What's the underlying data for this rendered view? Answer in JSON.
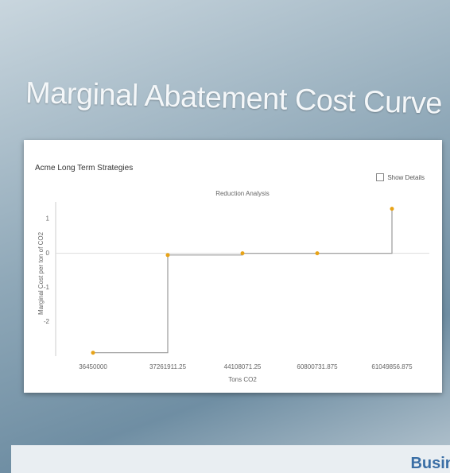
{
  "slide": {
    "title": "Marginal Abatement Cost Curve (MACC)",
    "footer": "Busin"
  },
  "panel": {
    "title": "Acme Long Term Strategies",
    "checkbox": "Show Details"
  },
  "chart_data": {
    "type": "step",
    "title": "Reduction Analysis",
    "x_label": "Tons CO2",
    "y_label": "Marginal Cost per ton of CO2",
    "categories": [
      "36450000",
      "37261911.25",
      "44108071.25",
      "60800731.875",
      "61049856.875"
    ],
    "values": [
      -2.9,
      -0.05,
      0,
      0,
      1.3
    ],
    "color": "#e8a317",
    "line_color": "#999999",
    "ylim": [
      -3,
      1.5
    ],
    "yticks": [
      1,
      0,
      -1,
      -2
    ]
  }
}
